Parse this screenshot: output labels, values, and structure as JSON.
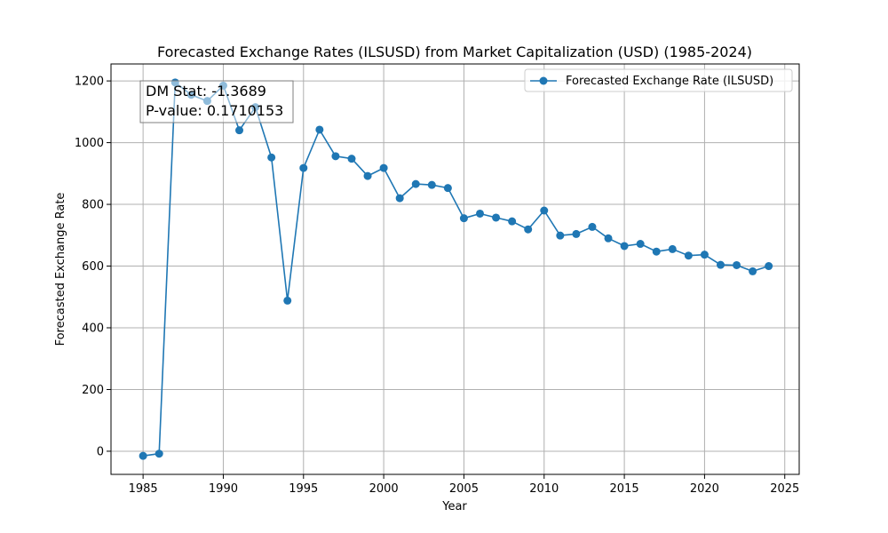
{
  "chart_data": {
    "type": "line",
    "title": "Forecasted Exchange Rates (ILSUSD) from Market Capitalization (USD) (1985-2024)",
    "xlabel": "Year",
    "ylabel": "Forecasted Exchange Rate",
    "xlim": [
      1983,
      2025.9
    ],
    "ylim": [
      -75,
      1255
    ],
    "xticks": [
      1985,
      1990,
      1995,
      2000,
      2005,
      2010,
      2015,
      2020,
      2025
    ],
    "yticks": [
      0,
      200,
      400,
      600,
      800,
      1000,
      1200
    ],
    "grid": true,
    "legend_position": "top-right",
    "series": [
      {
        "name": "Forecasted Exchange Rate (ILSUSD)",
        "color": "#1f77b4",
        "marker": "circle",
        "x": [
          1985,
          1986,
          1987,
          1988,
          1989,
          1990,
          1991,
          1992,
          1993,
          1994,
          1995,
          1996,
          1997,
          1998,
          1999,
          2000,
          2001,
          2002,
          2003,
          2004,
          2005,
          2006,
          2007,
          2008,
          2009,
          2010,
          2011,
          2012,
          2013,
          2014,
          2015,
          2016,
          2017,
          2018,
          2019,
          2020,
          2021,
          2022,
          2023,
          2024
        ],
        "values": [
          -15,
          -8,
          1195,
          1155,
          1135,
          1185,
          1040,
          1115,
          952,
          488,
          918,
          1042,
          956,
          948,
          892,
          918,
          820,
          866,
          863,
          853,
          755,
          770,
          757,
          745,
          719,
          780,
          699,
          704,
          727,
          690,
          665,
          672,
          647,
          655,
          634,
          637,
          604,
          603,
          583,
          600
        ]
      }
    ],
    "annotation": {
      "lines": [
        "DM Stat: -1.3689",
        "P-value: 0.1710153"
      ]
    }
  }
}
